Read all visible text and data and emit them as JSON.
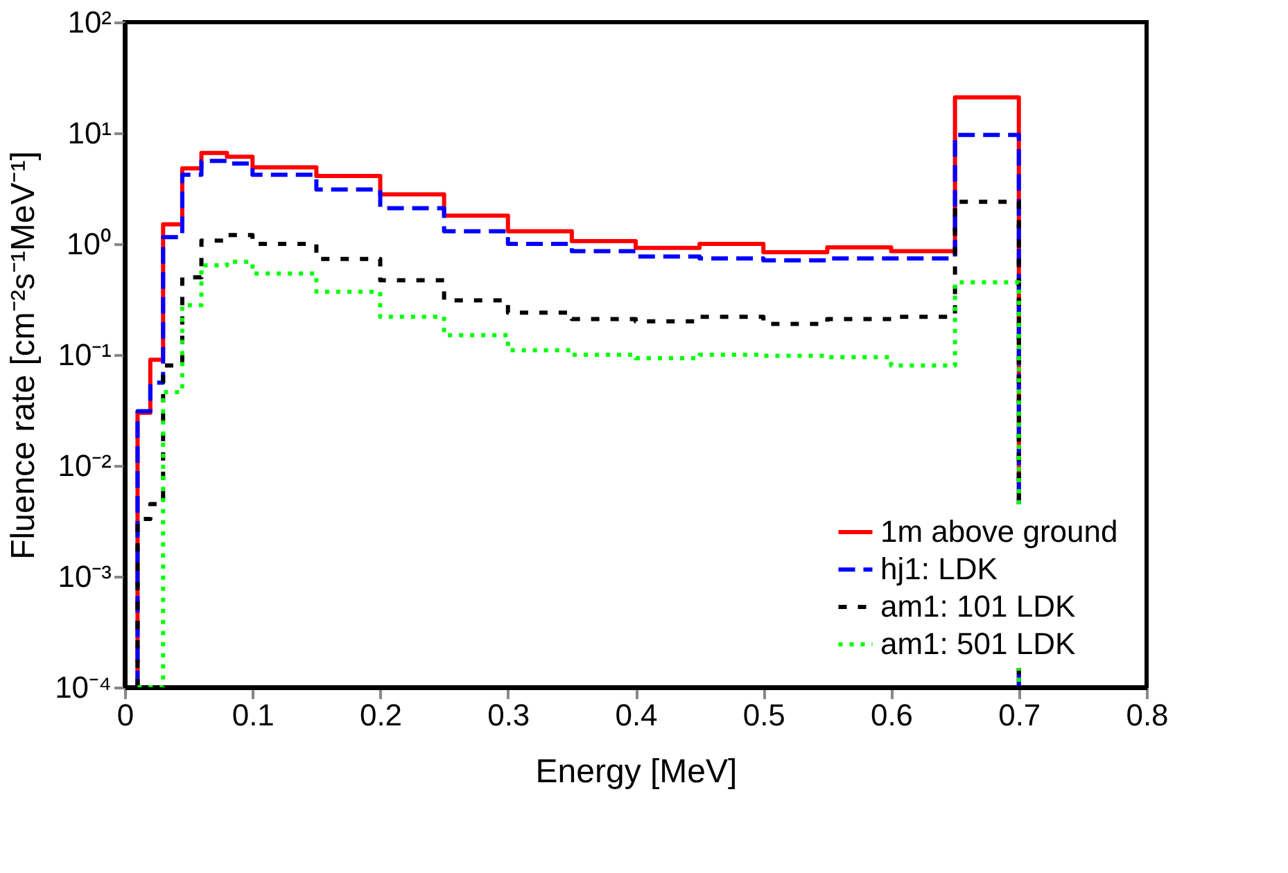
{
  "chart_data": {
    "type": "histogram",
    "xlabel": "Energy [MeV]",
    "ylabel": "Fluence rate [cm⁻²s⁻¹MeV⁻¹]",
    "bins": [
      0.01,
      0.02,
      0.03,
      0.045,
      0.06,
      0.08,
      0.1,
      0.15,
      0.2,
      0.25,
      0.3,
      0.35,
      0.4,
      0.45,
      0.5,
      0.55,
      0.6,
      0.65,
      0.7
    ],
    "series": [
      {
        "name": "1m above ground",
        "color": "#ff0000",
        "line_style": "solid",
        "values": [
          0.03,
          0.09,
          1.5,
          4.8,
          6.6,
          6.1,
          4.9,
          4.1,
          2.8,
          1.8,
          1.3,
          1.06,
          0.92,
          1.0,
          0.84,
          0.93,
          0.86,
          21
        ]
      },
      {
        "name": "hj1: LDK",
        "color": "#0000ff",
        "line_style": "dashed",
        "values": [
          0.031,
          0.056,
          1.15,
          4.2,
          5.6,
          5.3,
          4.2,
          3.1,
          2.1,
          1.3,
          1.0,
          0.86,
          0.77,
          0.74,
          0.71,
          0.74,
          0.74,
          9.6
        ]
      },
      {
        "name": "am1: 101 LDK",
        "color": "#000000",
        "line_style": "dashed",
        "values": [
          0.0033,
          0.0045,
          0.08,
          0.5,
          1.07,
          1.2,
          1.0,
          0.73,
          0.47,
          0.31,
          0.24,
          0.21,
          0.2,
          0.22,
          0.19,
          0.21,
          0.22,
          2.4
        ]
      },
      {
        "name": "am1: 501 LDK",
        "color": "#00ff00",
        "line_style": "dotted",
        "values": [
          null,
          null,
          0.046,
          0.28,
          0.64,
          0.69,
          0.54,
          0.37,
          0.22,
          0.15,
          0.11,
          0.1,
          0.093,
          0.1,
          0.098,
          0.095,
          0.08,
          0.45
        ]
      }
    ],
    "xlim": [
      0,
      0.8
    ],
    "xticks": [
      0,
      0.1,
      0.2,
      0.3,
      0.4,
      0.5,
      0.6,
      0.7,
      0.8
    ],
    "ylim": [
      0.0001,
      100
    ],
    "log": true,
    "yticks": [
      {
        "value": 0.0001,
        "label": "10⁻⁴"
      },
      {
        "value": 0.001,
        "label": "10⁻³"
      },
      {
        "value": 0.01,
        "label": "10⁻²"
      },
      {
        "value": 0.1,
        "label": "10⁻¹"
      },
      {
        "value": 1,
        "label": "10⁰"
      },
      {
        "value": 10,
        "label": "10¹"
      },
      {
        "value": 100,
        "label": "10²"
      }
    ],
    "grid": false,
    "legend": "bottom right"
  }
}
